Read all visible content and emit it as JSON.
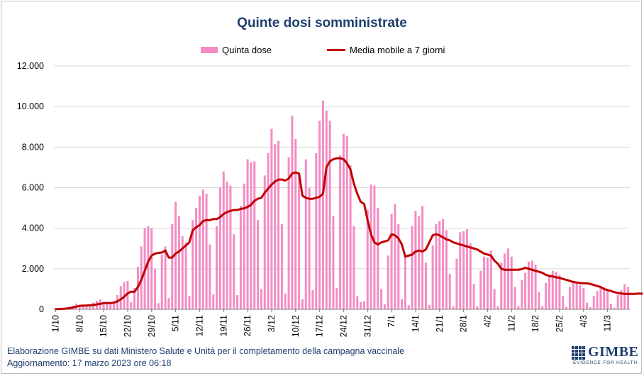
{
  "title": "Quinte dosi somministrate",
  "legend": {
    "bars": "Quinta dose",
    "line": "Media mobile a 7 giorni"
  },
  "footer": {
    "source": "Elaborazione GIMBE su dati Ministero Salute e Unità per il completamento della campagna vaccinale",
    "updated": "Aggiornamento: 17 marzo 2023 ore 06:18"
  },
  "logo": {
    "name": "GIMBE",
    "tagline": "EVIDENCE FOR HEALTH"
  },
  "colors": {
    "bars": "#f48cc3",
    "line": "#c00000",
    "title": "#1f3e6f",
    "grid": "#d9d9d9"
  },
  "chart_data": {
    "type": "bar",
    "title": "Quinte dosi somministrate",
    "ylim": [
      0,
      12000
    ],
    "yticks": [
      0,
      2000,
      4000,
      6000,
      8000,
      10000,
      12000
    ],
    "ytick_labels": [
      "0",
      "2.000",
      "4.000",
      "6.000",
      "8.000",
      "10.000",
      "12.000"
    ],
    "grid": true,
    "legend_position": "top",
    "x_start": "1/10/2022",
    "x_end": "16/3/2023",
    "xtick_labels": [
      "1/10",
      "8/10",
      "15/10",
      "22/10",
      "29/10",
      "5/11",
      "12/11",
      "19/11",
      "26/11",
      "3/12",
      "10/12",
      "17/12",
      "24/12",
      "31/12",
      "7/1",
      "14/1",
      "21/1",
      "28/1",
      "4/2",
      "11/2",
      "18/2",
      "25/2",
      "4/3",
      "11/3"
    ],
    "series": [
      {
        "name": "Quinta dose",
        "type": "bar",
        "values": [
          10,
          15,
          20,
          60,
          110,
          180,
          280,
          220,
          200,
          160,
          240,
          330,
          420,
          480,
          380,
          300,
          240,
          350,
          700,
          1150,
          1350,
          1400,
          350,
          1050,
          2100,
          3100,
          4000,
          4100,
          4000,
          2000,
          300,
          2700,
          3100,
          550,
          4200,
          5300,
          4600,
          3600,
          3300,
          650,
          4400,
          5000,
          5600,
          5900,
          5700,
          3200,
          750,
          4100,
          6000,
          6800,
          6300,
          6100,
          3700,
          700,
          5100,
          6200,
          7400,
          7250,
          7300,
          4400,
          1000,
          6600,
          7700,
          8900,
          8150,
          8300,
          4200,
          780,
          7500,
          9550,
          8400,
          6700,
          500,
          7400,
          6000,
          950,
          7700,
          9300,
          10300,
          9800,
          9300,
          4600,
          1050,
          7600,
          8650,
          8550,
          7100,
          4100,
          650,
          350,
          400,
          4900,
          6150,
          6100,
          5000,
          1000,
          250,
          2650,
          4700,
          5200,
          4200,
          500,
          2600,
          200,
          4100,
          4850,
          4600,
          5100,
          2300,
          220,
          3150,
          4200,
          4350,
          4450,
          3900,
          1750,
          150,
          2500,
          3800,
          3850,
          3950,
          3250,
          1250,
          150,
          1900,
          2600,
          2550,
          2900,
          1000,
          150,
          2300,
          2750,
          3000,
          2600,
          1100,
          150,
          1450,
          1800,
          2350,
          2400,
          2200,
          850,
          150,
          1300,
          1600,
          1900,
          1850,
          1700,
          650,
          120,
          1100,
          1300,
          1350,
          1200,
          1050,
          330,
          100,
          650,
          900,
          1150,
          1100,
          900,
          270,
          80,
          700,
          950,
          1250,
          1100
        ]
      },
      {
        "name": "Media mobile a 7 giorni",
        "type": "line",
        "values": [
          10,
          12,
          20,
          35,
          60,
          90,
          130,
          170,
          185,
          190,
          200,
          215,
          240,
          270,
          300,
          310,
          305,
          330,
          390,
          490,
          620,
          780,
          870,
          860,
          1100,
          1450,
          1900,
          2350,
          2650,
          2750,
          2780,
          2800,
          2900,
          2550,
          2550,
          2750,
          2850,
          3000,
          3150,
          3300,
          3900,
          4050,
          4150,
          4350,
          4400,
          4400,
          4450,
          4450,
          4550,
          4700,
          4800,
          4850,
          4900,
          4900,
          4950,
          4980,
          5050,
          5150,
          5350,
          5450,
          5500,
          5750,
          5950,
          6150,
          6300,
          6400,
          6400,
          6350,
          6450,
          6700,
          6750,
          6700,
          5600,
          5500,
          5450,
          5450,
          5500,
          5550,
          5700,
          7000,
          7300,
          7400,
          7450,
          7450,
          7400,
          7200,
          6900,
          6200,
          5700,
          5300,
          5200,
          4400,
          3700,
          3300,
          3200,
          3300,
          3350,
          3400,
          3700,
          3650,
          3500,
          3200,
          2600,
          2650,
          2700,
          2850,
          2900,
          2850,
          2950,
          3300,
          3650,
          3700,
          3650,
          3550,
          3450,
          3400,
          3300,
          3250,
          3200,
          3150,
          3100,
          3050,
          3000,
          2950,
          2850,
          2750,
          2700,
          2650,
          2400,
          2250,
          2000,
          1950,
          1950,
          1950,
          1950,
          1950,
          1980,
          2050,
          2000,
          1950,
          1900,
          1850,
          1800,
          1700,
          1650,
          1620,
          1580,
          1550,
          1500,
          1450,
          1400,
          1350,
          1320,
          1300,
          1280,
          1280,
          1250,
          1200,
          1150,
          1100,
          1000,
          950,
          900,
          850,
          800,
          780,
          760,
          760,
          760,
          760,
          780,
          770
        ]
      }
    ]
  }
}
